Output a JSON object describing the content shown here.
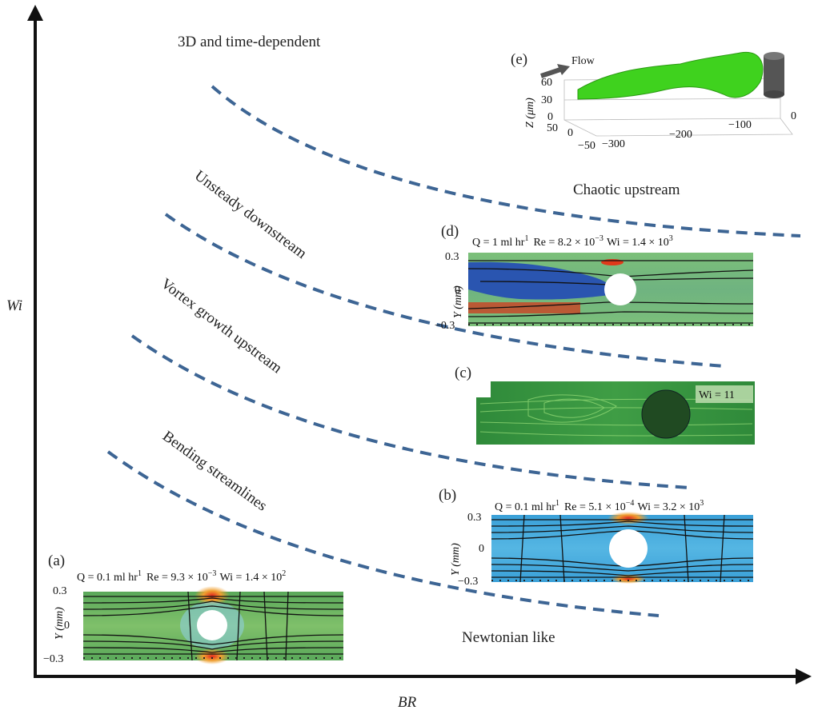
{
  "axes": {
    "x_label": "BR",
    "y_label": "Wi"
  },
  "regions": {
    "time_dependent": "3D and time-dependent",
    "chaotic_upstream": "Chaotic upstream",
    "unsteady_downstream": "Unsteady downstream",
    "vortex_growth": "Vortex growth upstream",
    "bending": "Bending streamlines",
    "newtonian": "Newtonian like"
  },
  "panels": {
    "a": {
      "tag": "(a)",
      "q": "Q = 0.1 ml hr",
      "q_sup": "1",
      "re": "Re = 9.3 × 10",
      "re_sup": "−3",
      "wi": "Wi = 1.4 × 10",
      "wi_sup": "2",
      "y_axis": "Y (mm)",
      "ticks": [
        "0.3",
        "0",
        "−0.3"
      ]
    },
    "b": {
      "tag": "(b)",
      "q": "Q = 0.1 ml hr",
      "q_sup": "1",
      "re": "Re = 5.1 × 10",
      "re_sup": "−4",
      "wi": "Wi = 3.2 × 10",
      "wi_sup": "3",
      "y_axis": "Y (mm)",
      "ticks": [
        "0.3",
        "0",
        "−0.3"
      ]
    },
    "c": {
      "tag": "(c)",
      "wi": "Wi = 11"
    },
    "d": {
      "tag": "(d)",
      "q": "Q = 1 ml hr",
      "q_sup": "1",
      "re": "Re = 8.2 × 10",
      "re_sup": "−3",
      "wi": "Wi = 1.4 × 10",
      "wi_sup": "3",
      "y_axis": "Y (mm)",
      "ticks": [
        "0.3",
        "0",
        "−0.3"
      ]
    },
    "e": {
      "tag": "(e)",
      "flow": "Flow",
      "z_axis": "Z (μm)",
      "z_ticks": [
        "60",
        "30",
        "0"
      ],
      "x_ticks": [
        "0",
        "−100",
        "−200",
        "−300"
      ],
      "y_ticks": [
        "50",
        "0",
        "−50"
      ]
    }
  },
  "colors": {
    "dashed_boundary": "#3d6594",
    "axis": "#111111",
    "isosurface": "#3fd21e",
    "cylinder": "#555555"
  }
}
